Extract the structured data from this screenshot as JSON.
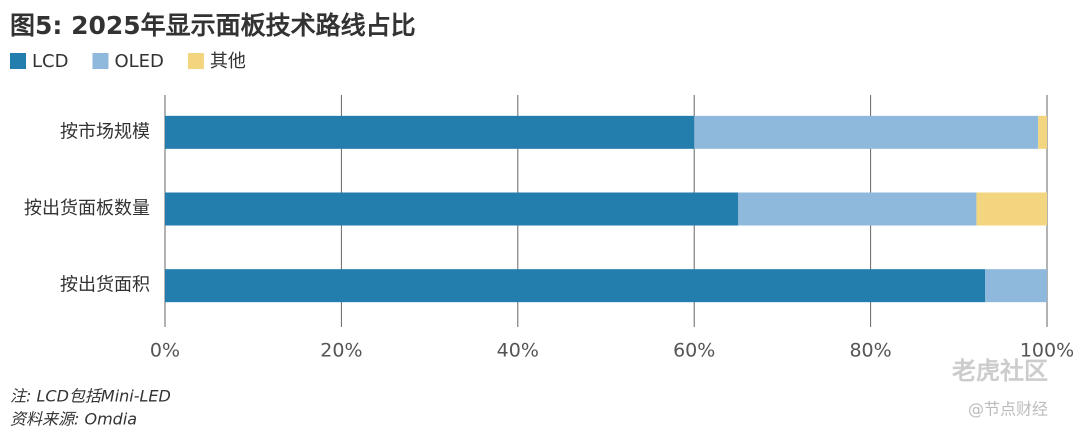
{
  "chart_data": {
    "type": "stacked-barh",
    "title": "图5: 2025年显示面板技术路线占比",
    "categories": [
      "按市场规模",
      "按出货面板数量",
      "按出货面积"
    ],
    "series": [
      {
        "name": "LCD",
        "color": "#237eae",
        "values": [
          60,
          65,
          93
        ]
      },
      {
        "name": "OLED",
        "color": "#8fb9dc",
        "values": [
          39,
          27,
          7
        ]
      },
      {
        "name": "其他",
        "color": "#f3d580",
        "values": [
          1,
          8,
          0
        ]
      }
    ],
    "xlim": [
      0,
      100
    ],
    "xticks": [
      {
        "value": 0,
        "label": "0%"
      },
      {
        "value": 20,
        "label": "20%"
      },
      {
        "value": 40,
        "label": "40%"
      },
      {
        "value": 60,
        "label": "60%"
      },
      {
        "value": 80,
        "label": "80%"
      },
      {
        "value": 100,
        "label": "100%"
      }
    ],
    "grid": true,
    "legend": "top-left",
    "notes": [
      "注: LCD包括Mini-LED",
      "资料来源: Omdia"
    ],
    "watermarks": [
      "老虎社区",
      "@节点财经"
    ]
  }
}
